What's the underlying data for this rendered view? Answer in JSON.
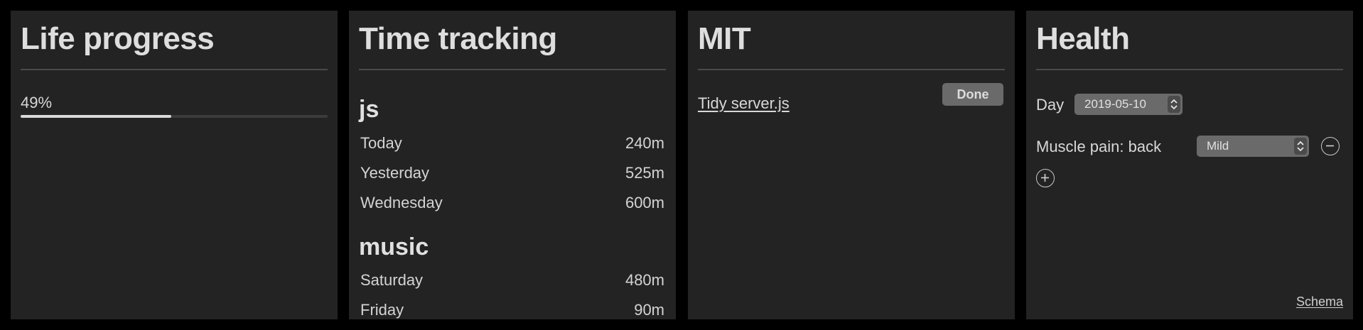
{
  "life_progress": {
    "title": "Life progress",
    "value_text": "49%",
    "progress": 0.49
  },
  "time_tracking": {
    "title": "Time tracking",
    "groups": [
      {
        "name": "js",
        "rows": [
          {
            "label": "Today",
            "value": "240m"
          },
          {
            "label": "Yesterday",
            "value": "525m"
          },
          {
            "label": "Wednesday",
            "value": "600m"
          }
        ]
      },
      {
        "name": "music",
        "rows": [
          {
            "label": "Saturday",
            "value": "480m"
          },
          {
            "label": "Friday",
            "value": "90m"
          }
        ]
      }
    ]
  },
  "mit": {
    "title": "MIT",
    "task": "Tidy server.js",
    "done_label": "Done"
  },
  "health": {
    "title": "Health",
    "day_label": "Day",
    "day_value": "2019-05-10",
    "symptom_label": "Muscle pain: back",
    "severity_value": "Mild",
    "schema_link": "Schema",
    "remove_icon": "minus-circle-icon",
    "add_icon": "plus-circle-icon"
  },
  "colors": {
    "background": "#000000",
    "panel": "#232323",
    "text": "#dcdcdc",
    "control": "#6a6a6a"
  }
}
